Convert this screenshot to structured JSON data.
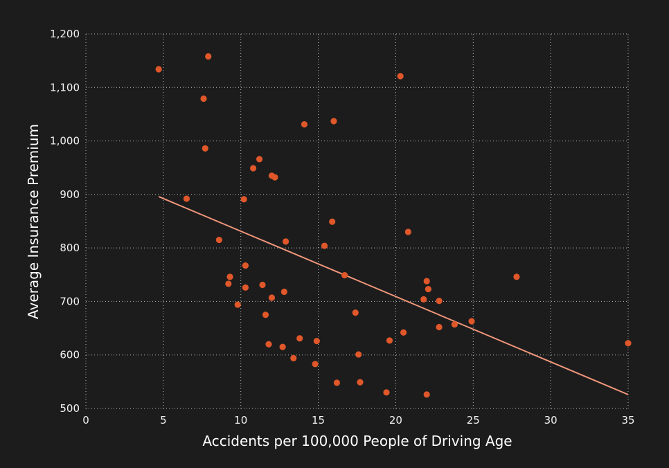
{
  "chart_data": {
    "type": "scatter",
    "title": "",
    "xlabel": "Accidents per 100,000 People of Driving Age",
    "ylabel": "Average Insurance Premium",
    "xlim": [
      0,
      35
    ],
    "ylim": [
      500,
      1200
    ],
    "x_ticks": [
      0,
      5,
      10,
      15,
      20,
      25,
      30,
      35
    ],
    "y_ticks": [
      500,
      600,
      700,
      800,
      900,
      1000,
      1100,
      1200
    ],
    "x_tick_labels": [
      "0",
      "5",
      "10",
      "15",
      "20",
      "25",
      "30",
      "35"
    ],
    "y_tick_labels": [
      "500",
      "600",
      "700",
      "800",
      "900",
      "1,000",
      "1,100",
      "1,200"
    ],
    "grid": true,
    "colors": {
      "background": "#1c1c1c",
      "points": "#e0572a",
      "trendline": "#f0957a",
      "grid": "#bdbdbd"
    },
    "series": [
      {
        "points": [
          [
            4.7,
            1134
          ],
          [
            7.9,
            1158
          ],
          [
            7.6,
            1079
          ],
          [
            7.7,
            986
          ],
          [
            6.5,
            892
          ],
          [
            8.6,
            815
          ],
          [
            9.3,
            746
          ],
          [
            9.2,
            733
          ],
          [
            9.8,
            694
          ],
          [
            10.3,
            767
          ],
          [
            10.3,
            726
          ],
          [
            10.2,
            891
          ],
          [
            10.8,
            949
          ],
          [
            11.2,
            966
          ],
          [
            11.4,
            731
          ],
          [
            11.6,
            675
          ],
          [
            11.8,
            620
          ],
          [
            12.0,
            707
          ],
          [
            12.0,
            935
          ],
          [
            12.2,
            932
          ],
          [
            12.7,
            615
          ],
          [
            12.8,
            718
          ],
          [
            12.9,
            812
          ],
          [
            13.4,
            594
          ],
          [
            13.8,
            631
          ],
          [
            14.1,
            1031
          ],
          [
            14.8,
            583
          ],
          [
            14.9,
            626
          ],
          [
            15.4,
            804
          ],
          [
            15.9,
            849
          ],
          [
            16.0,
            1037
          ],
          [
            16.2,
            548
          ],
          [
            16.7,
            749
          ],
          [
            17.4,
            679
          ],
          [
            17.6,
            601
          ],
          [
            17.7,
            549
          ],
          [
            19.4,
            530
          ],
          [
            19.6,
            627
          ],
          [
            20.3,
            1121
          ],
          [
            20.5,
            642
          ],
          [
            20.8,
            830
          ],
          [
            21.8,
            704
          ],
          [
            22.0,
            738
          ],
          [
            22.1,
            723
          ],
          [
            22.0,
            526
          ],
          [
            22.8,
            652
          ],
          [
            22.8,
            701
          ],
          [
            23.8,
            657
          ],
          [
            24.9,
            663
          ],
          [
            27.8,
            746
          ],
          [
            35.0,
            622
          ]
        ]
      }
    ],
    "trendline": {
      "start": [
        4.7,
        896
      ],
      "end": [
        35.0,
        526
      ]
    }
  }
}
